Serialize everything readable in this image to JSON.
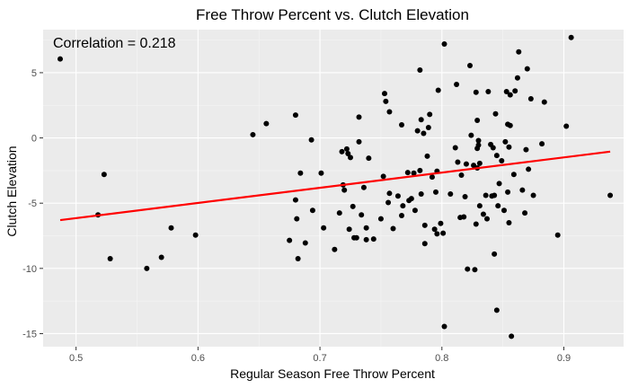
{
  "chart_data": {
    "type": "scatter",
    "title": "Free Throw Percent vs. Clutch Elevation",
    "xlabel": "Regular Season Free Throw Percent",
    "ylabel": "Clutch Elevation",
    "annotation": "Correlation = 0.218",
    "xlim": [
      0.473,
      0.949
    ],
    "ylim": [
      -16.0,
      8.3
    ],
    "x_ticks": [
      0.5,
      0.6,
      0.7,
      0.8,
      0.9
    ],
    "x_tick_labels": [
      "0.5",
      "0.6",
      "0.7",
      "0.8",
      "0.9"
    ],
    "y_ticks": [
      -15,
      -10,
      -5,
      0,
      5
    ],
    "y_tick_labels": [
      "-15",
      "-10",
      "-5",
      "0",
      "5"
    ],
    "grid": true,
    "legend": "none",
    "colors": {
      "panel": "#ebebeb",
      "grid_major": "#ffffff",
      "grid_minor": "#f5f5f5",
      "points": "#000000",
      "trend_line": "#ff0000",
      "tick_text": "#4d4d4d",
      "tick_marks": "#333333"
    },
    "trend_line": {
      "x": [
        0.487,
        0.938
      ],
      "y": [
        -6.3,
        -1.05
      ]
    },
    "points": [
      {
        "x": 0.487,
        "y": 6.05
      },
      {
        "x": 0.518,
        "y": -5.9
      },
      {
        "x": 0.523,
        "y": -2.8
      },
      {
        "x": 0.528,
        "y": -9.25
      },
      {
        "x": 0.558,
        "y": -10.0
      },
      {
        "x": 0.57,
        "y": -9.15
      },
      {
        "x": 0.578,
        "y": -6.9
      },
      {
        "x": 0.598,
        "y": -7.45
      },
      {
        "x": 0.645,
        "y": 0.25
      },
      {
        "x": 0.656,
        "y": 1.1
      },
      {
        "x": 0.675,
        "y": -7.85
      },
      {
        "x": 0.68,
        "y": 1.75
      },
      {
        "x": 0.68,
        "y": -4.75
      },
      {
        "x": 0.681,
        "y": -6.2
      },
      {
        "x": 0.682,
        "y": -9.25
      },
      {
        "x": 0.684,
        "y": -2.7
      },
      {
        "x": 0.688,
        "y": -8.05
      },
      {
        "x": 0.693,
        "y": -0.15
      },
      {
        "x": 0.694,
        "y": -5.55
      },
      {
        "x": 0.701,
        "y": -2.7
      },
      {
        "x": 0.703,
        "y": -6.9
      },
      {
        "x": 0.712,
        "y": -8.55
      },
      {
        "x": 0.716,
        "y": -5.75
      },
      {
        "x": 0.718,
        "y": -1.05
      },
      {
        "x": 0.719,
        "y": -3.6
      },
      {
        "x": 0.72,
        "y": -4.0
      },
      {
        "x": 0.722,
        "y": -0.85
      },
      {
        "x": 0.723,
        "y": -1.2
      },
      {
        "x": 0.724,
        "y": -7.0
      },
      {
        "x": 0.725,
        "y": -1.5
      },
      {
        "x": 0.727,
        "y": -5.25
      },
      {
        "x": 0.728,
        "y": -7.65
      },
      {
        "x": 0.73,
        "y": -7.65
      },
      {
        "x": 0.732,
        "y": 1.6
      },
      {
        "x": 0.732,
        "y": -0.3
      },
      {
        "x": 0.734,
        "y": -5.9
      },
      {
        "x": 0.736,
        "y": -3.8
      },
      {
        "x": 0.738,
        "y": -7.8
      },
      {
        "x": 0.738,
        "y": -6.9
      },
      {
        "x": 0.74,
        "y": -1.55
      },
      {
        "x": 0.744,
        "y": -7.75
      },
      {
        "x": 0.75,
        "y": -6.2
      },
      {
        "x": 0.752,
        "y": -2.95
      },
      {
        "x": 0.753,
        "y": 3.4
      },
      {
        "x": 0.754,
        "y": 2.8
      },
      {
        "x": 0.756,
        "y": -4.95
      },
      {
        "x": 0.757,
        "y": -4.25
      },
      {
        "x": 0.757,
        "y": 2.0
      },
      {
        "x": 0.76,
        "y": -6.95
      },
      {
        "x": 0.764,
        "y": -4.45
      },
      {
        "x": 0.767,
        "y": 1.0
      },
      {
        "x": 0.767,
        "y": -5.95
      },
      {
        "x": 0.768,
        "y": -5.2
      },
      {
        "x": 0.772,
        "y": -2.65
      },
      {
        "x": 0.773,
        "y": -4.8
      },
      {
        "x": 0.775,
        "y": -4.65
      },
      {
        "x": 0.777,
        "y": -2.7
      },
      {
        "x": 0.778,
        "y": -5.55
      },
      {
        "x": 0.78,
        "y": 0.55
      },
      {
        "x": 0.782,
        "y": 5.2
      },
      {
        "x": 0.782,
        "y": -2.5
      },
      {
        "x": 0.783,
        "y": 1.4
      },
      {
        "x": 0.783,
        "y": -4.3
      },
      {
        "x": 0.785,
        "y": 0.35
      },
      {
        "x": 0.786,
        "y": -8.1
      },
      {
        "x": 0.786,
        "y": -6.7
      },
      {
        "x": 0.788,
        "y": -1.4
      },
      {
        "x": 0.789,
        "y": 0.8
      },
      {
        "x": 0.79,
        "y": 1.8
      },
      {
        "x": 0.792,
        "y": -3.0
      },
      {
        "x": 0.794,
        "y": -7.0
      },
      {
        "x": 0.795,
        "y": -4.15
      },
      {
        "x": 0.796,
        "y": -7.35
      },
      {
        "x": 0.796,
        "y": -2.55
      },
      {
        "x": 0.797,
        "y": 3.65
      },
      {
        "x": 0.799,
        "y": -6.55
      },
      {
        "x": 0.801,
        "y": -7.3
      },
      {
        "x": 0.802,
        "y": 7.2
      },
      {
        "x": 0.802,
        "y": -14.45
      },
      {
        "x": 0.807,
        "y": -4.3
      },
      {
        "x": 0.811,
        "y": -0.75
      },
      {
        "x": 0.812,
        "y": 4.1
      },
      {
        "x": 0.813,
        "y": -1.85
      },
      {
        "x": 0.815,
        "y": -6.1
      },
      {
        "x": 0.816,
        "y": -2.85
      },
      {
        "x": 0.818,
        "y": -6.05
      },
      {
        "x": 0.819,
        "y": -4.5
      },
      {
        "x": 0.82,
        "y": -2.0
      },
      {
        "x": 0.821,
        "y": -10.05
      },
      {
        "x": 0.823,
        "y": 5.55
      },
      {
        "x": 0.824,
        "y": 0.2
      },
      {
        "x": 0.826,
        "y": -2.1
      },
      {
        "x": 0.827,
        "y": -10.1
      },
      {
        "x": 0.828,
        "y": -6.6
      },
      {
        "x": 0.828,
        "y": 3.5
      },
      {
        "x": 0.829,
        "y": 1.35
      },
      {
        "x": 0.829,
        "y": -0.8
      },
      {
        "x": 0.829,
        "y": -2.3
      },
      {
        "x": 0.83,
        "y": -0.2
      },
      {
        "x": 0.83,
        "y": -0.55
      },
      {
        "x": 0.831,
        "y": -1.95
      },
      {
        "x": 0.831,
        "y": -5.2
      },
      {
        "x": 0.834,
        "y": -5.85
      },
      {
        "x": 0.836,
        "y": -4.4
      },
      {
        "x": 0.837,
        "y": -6.2
      },
      {
        "x": 0.838,
        "y": 3.55
      },
      {
        "x": 0.84,
        "y": -0.5
      },
      {
        "x": 0.841,
        "y": -4.45
      },
      {
        "x": 0.842,
        "y": -0.75
      },
      {
        "x": 0.843,
        "y": -8.9
      },
      {
        "x": 0.843,
        "y": -4.4
      },
      {
        "x": 0.844,
        "y": 1.85
      },
      {
        "x": 0.845,
        "y": -13.2
      },
      {
        "x": 0.845,
        "y": -1.35
      },
      {
        "x": 0.846,
        "y": -5.2
      },
      {
        "x": 0.847,
        "y": -3.5
      },
      {
        "x": 0.849,
        "y": -1.75
      },
      {
        "x": 0.851,
        "y": -5.55
      },
      {
        "x": 0.852,
        "y": -0.3
      },
      {
        "x": 0.853,
        "y": 3.55
      },
      {
        "x": 0.854,
        "y": -4.15
      },
      {
        "x": 0.854,
        "y": 1.05
      },
      {
        "x": 0.855,
        "y": -6.5
      },
      {
        "x": 0.855,
        "y": -0.7
      },
      {
        "x": 0.856,
        "y": 0.95
      },
      {
        "x": 0.856,
        "y": 3.3
      },
      {
        "x": 0.857,
        "y": -15.2
      },
      {
        "x": 0.859,
        "y": -2.8
      },
      {
        "x": 0.86,
        "y": 3.6
      },
      {
        "x": 0.862,
        "y": 4.6
      },
      {
        "x": 0.863,
        "y": 6.6
      },
      {
        "x": 0.866,
        "y": -4.0
      },
      {
        "x": 0.868,
        "y": -5.75
      },
      {
        "x": 0.869,
        "y": -0.9
      },
      {
        "x": 0.87,
        "y": 5.3
      },
      {
        "x": 0.871,
        "y": -2.4
      },
      {
        "x": 0.873,
        "y": 3.0
      },
      {
        "x": 0.875,
        "y": -4.4
      },
      {
        "x": 0.882,
        "y": -0.45
      },
      {
        "x": 0.884,
        "y": 2.75
      },
      {
        "x": 0.895,
        "y": -7.45
      },
      {
        "x": 0.902,
        "y": 0.9
      },
      {
        "x": 0.906,
        "y": 7.7
      },
      {
        "x": 0.938,
        "y": -4.4
      }
    ]
  }
}
